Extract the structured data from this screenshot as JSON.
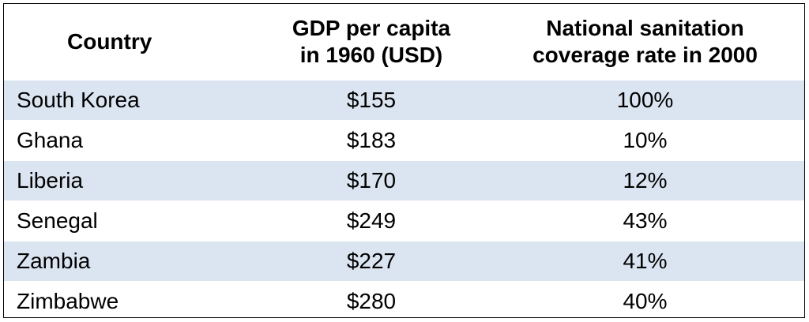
{
  "table": {
    "headers": {
      "country": "Country",
      "gdp": [
        "GDP per capita",
        "in 1960 (USD)"
      ],
      "sanitation": [
        "National sanitation",
        "coverage rate in 2000"
      ]
    },
    "rows": [
      {
        "country": "South Korea",
        "gdp": "$155",
        "rate": "100%"
      },
      {
        "country": "Ghana",
        "gdp": "$183",
        "rate": "10%"
      },
      {
        "country": "Liberia",
        "gdp": "$170",
        "rate": "12%"
      },
      {
        "country": "Senegal",
        "gdp": "$249",
        "rate": "43%"
      },
      {
        "country": "Zambia",
        "gdp": "$227",
        "rate": "41%"
      },
      {
        "country": "Zimbabwe",
        "gdp": "$280",
        "rate": "40%"
      }
    ],
    "colors": {
      "shaded_row": "#dbe5f1",
      "border": "#000000"
    }
  }
}
